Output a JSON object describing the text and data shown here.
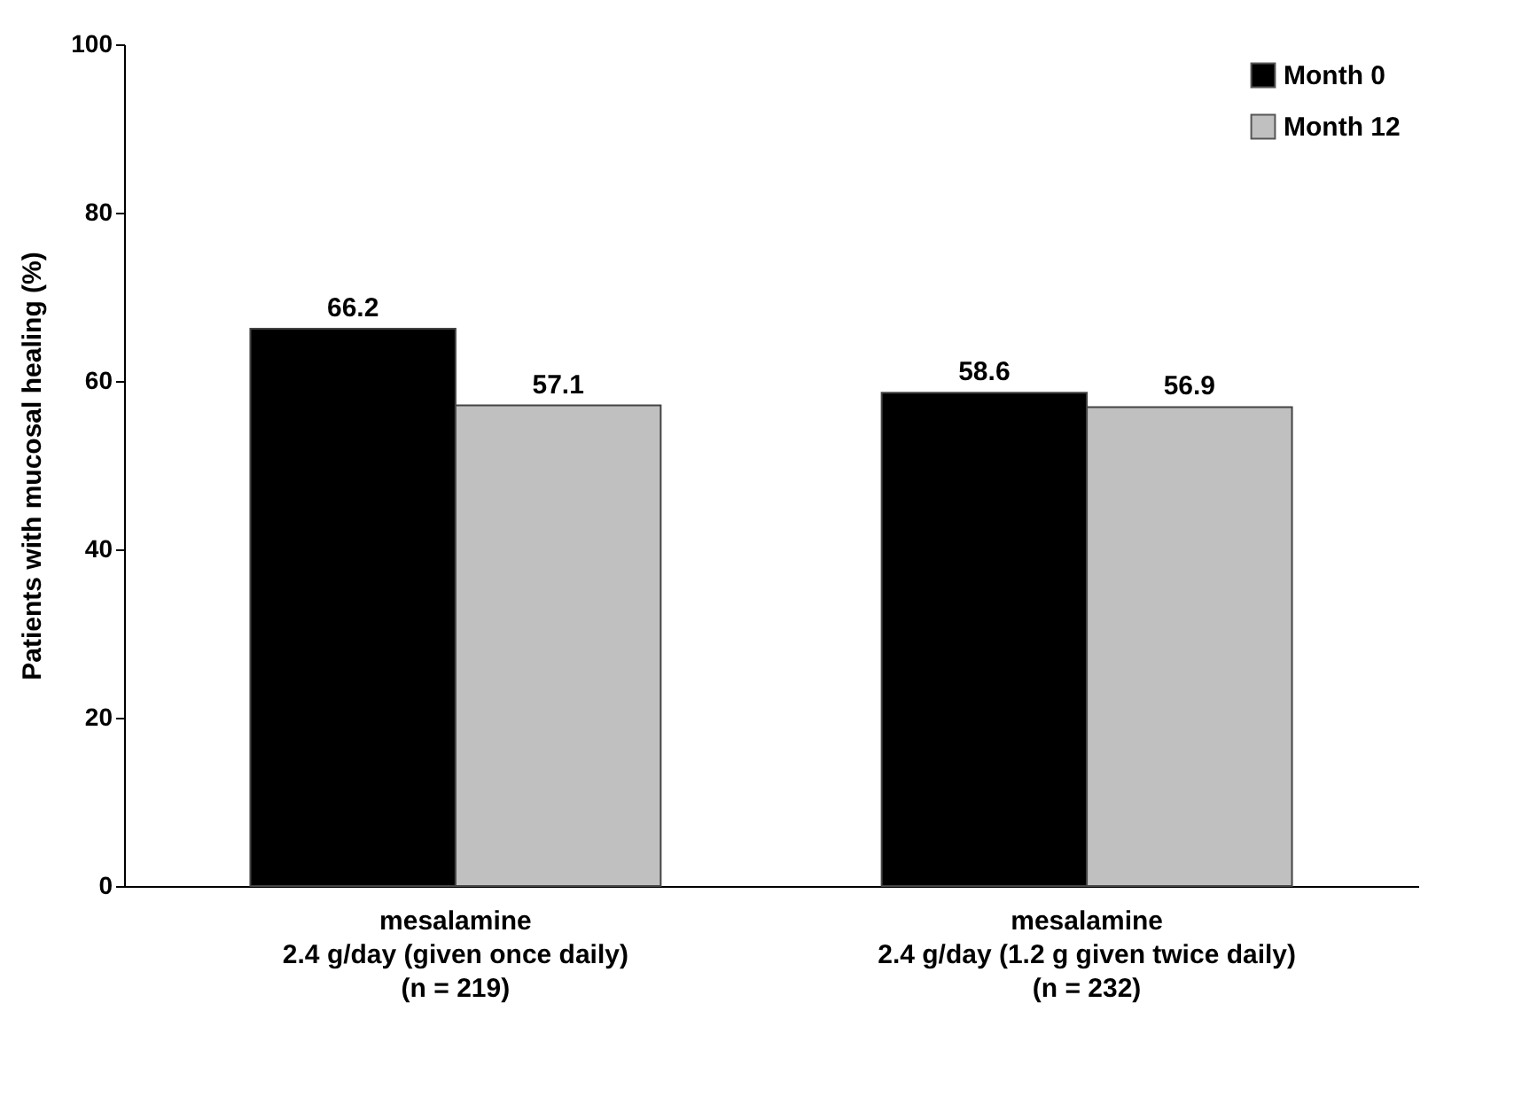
{
  "chart_data": {
    "type": "bar",
    "ylabel": "Patients with mucosal healing (%)",
    "categories": [
      "mesalamine\n2.4 g/day (given once daily)\n(n = 219)",
      "mesalamine\n2.4 g/day (1.2 g given twice daily)\n(n = 232)"
    ],
    "series": [
      {
        "name": "Month 0",
        "color": "#000000",
        "values": [
          66.2,
          58.6
        ]
      },
      {
        "name": "Month 12",
        "color": "#c0c0c0",
        "values": [
          57.1,
          56.9
        ]
      }
    ],
    "ylim": [
      0,
      100
    ],
    "yticks": [
      0,
      20,
      40,
      60,
      80,
      100
    ],
    "grid": false,
    "legend": "top right",
    "data_labels": true
  }
}
